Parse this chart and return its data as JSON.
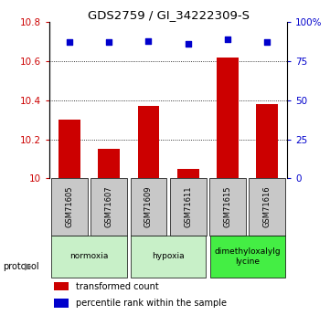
{
  "title": "GDS2759 / GI_34222309-S",
  "samples": [
    "GSM71605",
    "GSM71607",
    "GSM71609",
    "GSM71611",
    "GSM71615",
    "GSM71616"
  ],
  "transformed_count": [
    10.3,
    10.15,
    10.37,
    10.05,
    10.62,
    10.38
  ],
  "percentile_rank": [
    87,
    87,
    88,
    86,
    89,
    87
  ],
  "ylim_left": [
    10.0,
    10.8
  ],
  "ylim_right": [
    0,
    100
  ],
  "yticks_left": [
    10.0,
    10.2,
    10.4,
    10.6,
    10.8
  ],
  "yticks_right": [
    0,
    25,
    50,
    75,
    100
  ],
  "bar_color": "#cc0000",
  "scatter_color": "#0000cc",
  "sample_box_color": "#c8c8c8",
  "proto_labels": [
    "normoxia",
    "hypoxia",
    "dimethyloxalylg\nlycine"
  ],
  "proto_ranges": [
    [
      0,
      2
    ],
    [
      2,
      4
    ],
    [
      4,
      6
    ]
  ],
  "proto_colors": [
    "#c8f0c8",
    "#c8f0c8",
    "#44ee44"
  ],
  "legend_labels": [
    "transformed count",
    "percentile rank within the sample"
  ],
  "legend_colors": [
    "#cc0000",
    "#0000cc"
  ]
}
